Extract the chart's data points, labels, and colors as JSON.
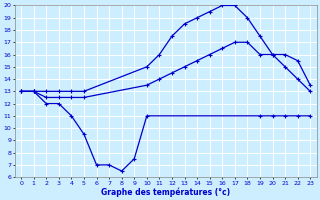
{
  "line1_x": [
    0,
    1,
    2,
    3,
    4,
    5,
    10,
    11,
    12,
    13,
    14,
    15,
    16,
    17,
    18,
    19,
    20,
    21,
    22,
    23
  ],
  "line1_y": [
    13,
    13,
    13,
    13,
    13,
    13,
    15,
    16,
    17.5,
    18.5,
    19,
    19.5,
    20,
    20,
    19,
    17.5,
    16,
    15,
    14,
    13
  ],
  "line2_x": [
    0,
    1,
    2,
    3,
    4,
    5,
    10,
    11,
    12,
    13,
    14,
    15,
    16,
    17,
    18,
    19,
    20,
    21,
    22,
    23
  ],
  "line2_y": [
    13,
    13,
    12.5,
    12.5,
    12.5,
    12.5,
    13.5,
    14,
    14.5,
    15,
    15.5,
    16,
    16.5,
    17,
    17,
    16,
    16,
    16,
    15.5,
    13.5
  ],
  "line3_x": [
    0,
    1,
    2,
    3,
    4,
    5,
    6,
    7,
    8,
    9,
    10,
    19,
    20,
    21,
    22,
    23
  ],
  "line3_y": [
    13,
    13,
    12,
    12,
    11,
    9.5,
    7,
    7,
    6.5,
    7.5,
    11,
    11,
    11,
    11,
    11,
    11
  ],
  "line_color": "#0000cc",
  "bg_color": "#cceeff",
  "grid_color": "#ffffff",
  "xlabel": "Graphe des températures (°c)",
  "xlim": [
    -0.5,
    23.5
  ],
  "ylim": [
    6,
    20
  ],
  "xticks": [
    0,
    1,
    2,
    3,
    4,
    5,
    6,
    7,
    8,
    9,
    10,
    11,
    12,
    13,
    14,
    15,
    16,
    17,
    18,
    19,
    20,
    21,
    22,
    23
  ],
  "yticks": [
    6,
    7,
    8,
    9,
    10,
    11,
    12,
    13,
    14,
    15,
    16,
    17,
    18,
    19,
    20
  ]
}
